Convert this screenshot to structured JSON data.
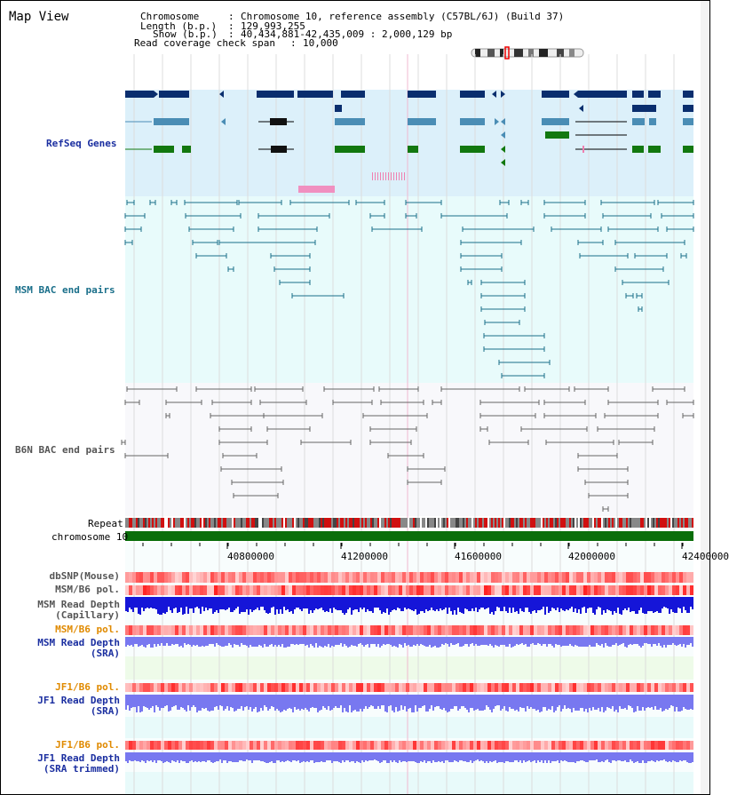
{
  "header": {
    "title": "Map View",
    "chromosome_label": "Chromosome",
    "chromosome_value": "Chromosome 10, reference assembly (C57BL/6J) (Build 37)",
    "length_label": "Length (b.p.)",
    "length_value": "129,993,255",
    "show_label": "Show (b.p.)",
    "show_value": "40,434,881-42,435,009 : 2,000,129 bp",
    "coverage_label": "Read coverage check span",
    "coverage_value": "10,000"
  },
  "tracks": {
    "refseq": "RefSeq Genes",
    "msm_bac": "MSM BAC end pairs",
    "b6n_bac": "B6N BAC end pairs",
    "repeat": "Repeat",
    "chromosome": "chromosome 10",
    "dbsnp": "dbSNP(Mouse)",
    "msm_b6_pol_1": "MSM/B6 pol.",
    "msm_depth_cap_1": "MSM Read Depth",
    "msm_depth_cap_2": "(Capillary)",
    "msm_b6_pol_2": "MSM/B6 pol.",
    "msm_depth_sra_1": "MSM Read Depth",
    "msm_depth_sra_2": "(SRA)",
    "jf1_b6_pol_1": "JF1/B6 pol.",
    "jf1_depth_sra_1": "JF1 Read Depth",
    "jf1_depth_sra_2": "(SRA)",
    "jf1_b6_pol_2": "JF1/B6 pol.",
    "jf1_depth_trim_1": "JF1 Read Depth",
    "jf1_depth_trim_2": "(SRA trimmed)"
  },
  "ruler": {
    "ticks": [
      "40800000",
      "41200000",
      "41600000",
      "42000000",
      "42400000"
    ]
  },
  "colors": {
    "refseq_bg": "#dcf0fa",
    "msm_bac_bg": "#e8fbfb",
    "b6n_bac_bg": "#f8f8fb",
    "msm_bac_line": "#1a6f8a",
    "b6n_bac_line": "#666666",
    "gene_dark": "#0a2e6e",
    "gene_mid": "#4a8db5",
    "gene_green": "#12780f",
    "chrom_green": "#0a6e0a",
    "label_blue": "#1a2ea0",
    "label_teal": "#1a6f8a",
    "label_orange": "#e08a00",
    "depth_blue": "#1515d8",
    "depth_light": "#7878f0"
  }
}
